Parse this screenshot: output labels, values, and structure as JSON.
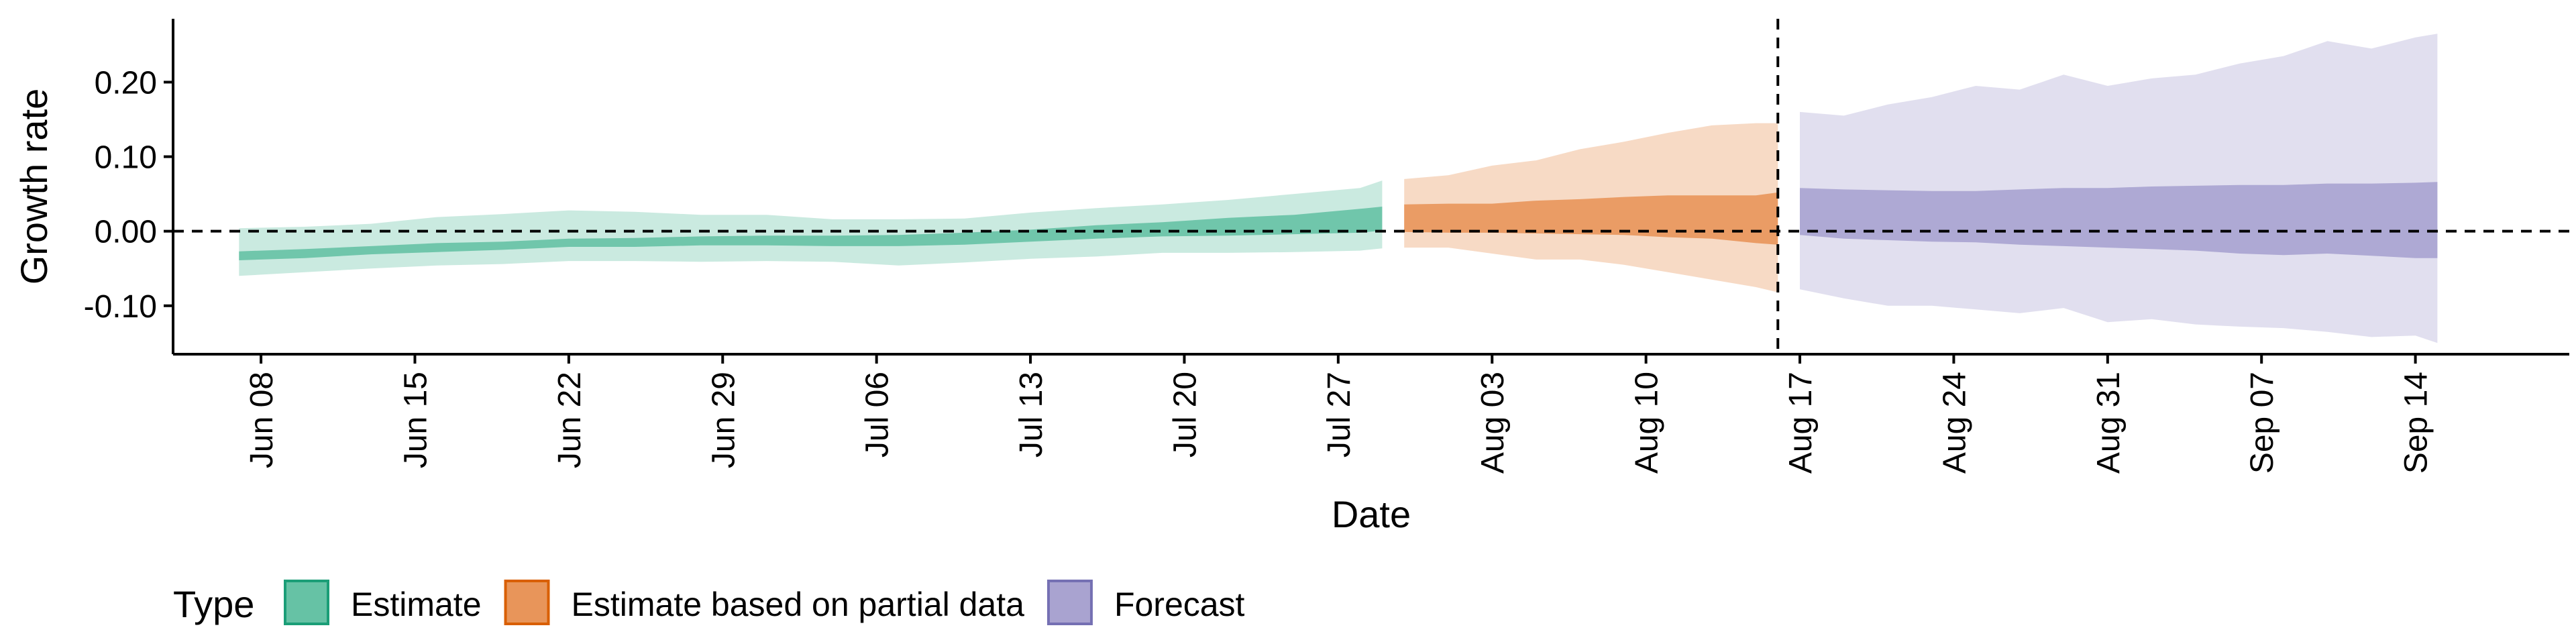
{
  "chart_data": {
    "type": "area",
    "xlabel": "Date",
    "ylabel": "Growth rate",
    "x_range": [
      "2020-06-04",
      "2020-09-21"
    ],
    "ylim": [
      -0.165,
      0.285
    ],
    "y_ticks": [
      -0.1,
      0.0,
      0.1,
      0.2
    ],
    "y_tick_labels": [
      "-0.10",
      "0.00",
      "0.10",
      "0.20"
    ],
    "x_ticks": [
      "2020-06-08",
      "2020-06-15",
      "2020-06-22",
      "2020-06-29",
      "2020-07-06",
      "2020-07-13",
      "2020-07-20",
      "2020-07-27",
      "2020-08-03",
      "2020-08-10",
      "2020-08-17",
      "2020-08-24",
      "2020-08-31",
      "2020-09-07",
      "2020-09-14"
    ],
    "x_tick_labels": [
      "Jun 08",
      "Jun 15",
      "Jun 22",
      "Jun 29",
      "Jul 06",
      "Jul 13",
      "Jul 20",
      "Jul 27",
      "Aug 03",
      "Aug 10",
      "Aug 17",
      "Aug 24",
      "Aug 31",
      "Sep 07",
      "Sep 14"
    ],
    "hline": 0.0,
    "vline": "2020-08-16",
    "grid": false,
    "legend": {
      "title": "Type",
      "position": "bottom-left",
      "entries": [
        {
          "label": "Estimate",
          "color": "#66c2a5",
          "edge": "#1b9e77"
        },
        {
          "label": "Estimate based on partial data",
          "color": "#e8955a",
          "edge": "#d95f02"
        },
        {
          "label": "Forecast",
          "color": "#a9a3d0",
          "edge": "#7570b3"
        }
      ]
    },
    "series": [
      {
        "name": "Estimate",
        "color": "#66c2a5",
        "x": [
          "2020-06-07",
          "2020-06-10",
          "2020-06-13",
          "2020-06-16",
          "2020-06-19",
          "2020-06-22",
          "2020-06-25",
          "2020-06-28",
          "2020-07-01",
          "2020-07-04",
          "2020-07-07",
          "2020-07-10",
          "2020-07-13",
          "2020-07-16",
          "2020-07-19",
          "2020-07-22",
          "2020-07-25",
          "2020-07-28",
          "2020-07-29"
        ],
        "outer_lower": [
          -0.06,
          -0.055,
          -0.05,
          -0.046,
          -0.044,
          -0.04,
          -0.04,
          -0.041,
          -0.04,
          -0.041,
          -0.046,
          -0.042,
          -0.037,
          -0.034,
          -0.029,
          -0.029,
          -0.028,
          -0.026,
          -0.023
        ],
        "outer_upper": [
          0.004,
          0.006,
          0.01,
          0.019,
          0.023,
          0.028,
          0.026,
          0.022,
          0.022,
          0.016,
          0.016,
          0.017,
          0.025,
          0.031,
          0.036,
          0.042,
          0.05,
          0.058,
          0.068
        ],
        "inner_lower": [
          -0.039,
          -0.036,
          -0.031,
          -0.028,
          -0.025,
          -0.021,
          -0.021,
          -0.019,
          -0.019,
          -0.02,
          -0.02,
          -0.018,
          -0.014,
          -0.01,
          -0.007,
          -0.006,
          -0.004,
          -0.002,
          0.001
        ],
        "inner_upper": [
          -0.027,
          -0.024,
          -0.02,
          -0.016,
          -0.014,
          -0.01,
          -0.009,
          -0.007,
          -0.006,
          -0.006,
          -0.005,
          -0.002,
          0.002,
          0.008,
          0.012,
          0.018,
          0.022,
          0.03,
          0.033
        ]
      },
      {
        "name": "Estimate based on partial data",
        "color": "#e8955a",
        "x": [
          "2020-07-30",
          "2020-08-01",
          "2020-08-03",
          "2020-08-05",
          "2020-08-07",
          "2020-08-09",
          "2020-08-11",
          "2020-08-13",
          "2020-08-15",
          "2020-08-16"
        ],
        "outer_lower": [
          -0.022,
          -0.022,
          -0.03,
          -0.038,
          -0.038,
          -0.045,
          -0.055,
          -0.065,
          -0.075,
          -0.082
        ],
        "outer_upper": [
          0.07,
          0.075,
          0.088,
          0.095,
          0.11,
          0.12,
          0.132,
          0.142,
          0.145,
          0.145
        ],
        "inner_lower": [
          -0.001,
          -0.002,
          -0.002,
          -0.003,
          -0.004,
          -0.005,
          -0.008,
          -0.01,
          -0.016,
          -0.018
        ],
        "inner_upper": [
          0.036,
          0.037,
          0.037,
          0.041,
          0.043,
          0.046,
          0.048,
          0.048,
          0.048,
          0.052
        ]
      },
      {
        "name": "Forecast",
        "color": "#a9a3d0",
        "x": [
          "2020-08-17",
          "2020-08-19",
          "2020-08-21",
          "2020-08-23",
          "2020-08-25",
          "2020-08-27",
          "2020-08-29",
          "2020-08-31",
          "2020-09-02",
          "2020-09-04",
          "2020-09-06",
          "2020-09-08",
          "2020-09-10",
          "2020-09-12",
          "2020-09-14",
          "2020-09-15"
        ],
        "outer_lower": [
          -0.078,
          -0.09,
          -0.1,
          -0.1,
          -0.105,
          -0.11,
          -0.103,
          -0.122,
          -0.118,
          -0.125,
          -0.128,
          -0.13,
          -0.135,
          -0.142,
          -0.14,
          -0.15
        ],
        "outer_upper": [
          0.16,
          0.155,
          0.17,
          0.18,
          0.195,
          0.19,
          0.21,
          0.195,
          0.205,
          0.21,
          0.225,
          0.235,
          0.255,
          0.245,
          0.26,
          0.265
        ],
        "inner_lower": [
          -0.005,
          -0.01,
          -0.012,
          -0.014,
          -0.015,
          -0.018,
          -0.02,
          -0.022,
          -0.024,
          -0.026,
          -0.03,
          -0.032,
          -0.03,
          -0.033,
          -0.036,
          -0.036
        ],
        "inner_upper": [
          0.058,
          0.056,
          0.055,
          0.054,
          0.054,
          0.056,
          0.058,
          0.058,
          0.06,
          0.061,
          0.062,
          0.062,
          0.064,
          0.064,
          0.065,
          0.066
        ]
      }
    ]
  }
}
